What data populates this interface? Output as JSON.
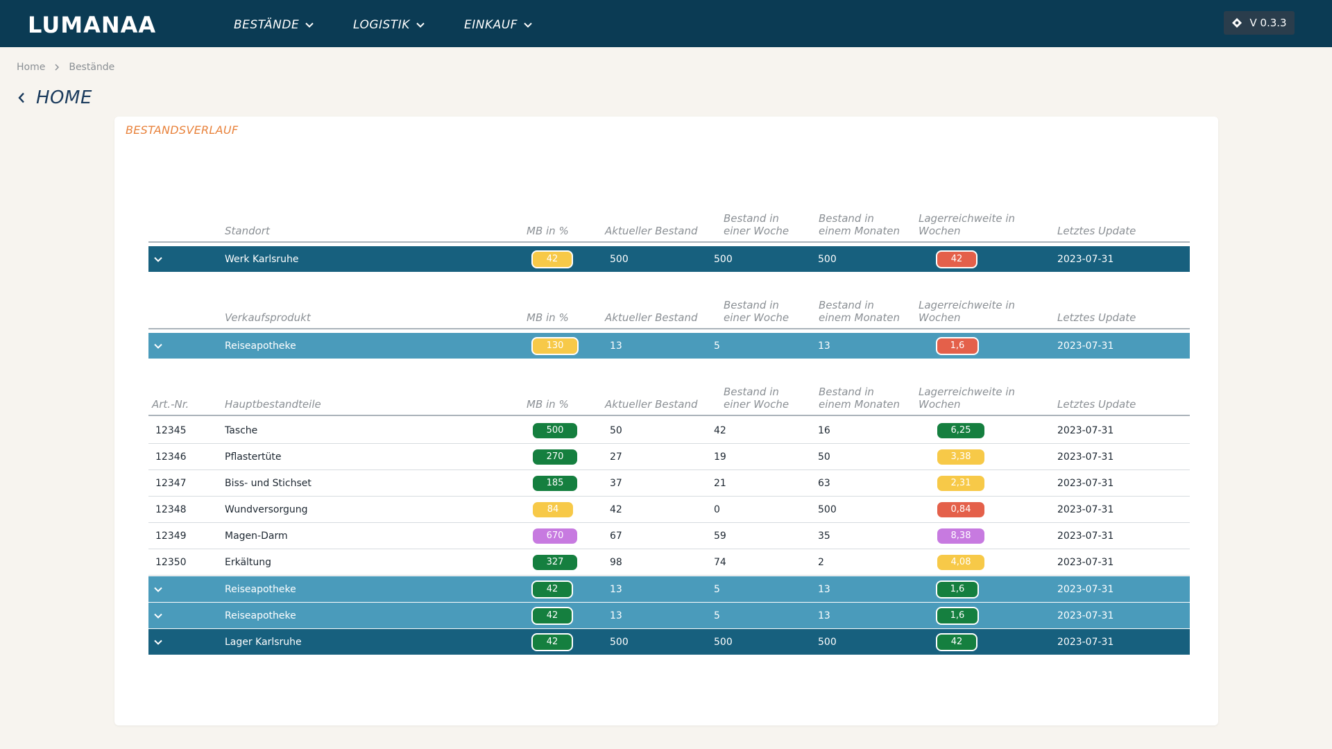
{
  "colors": {
    "nav_bg": "#0b3b54",
    "page_bg": "#f7f4ef",
    "accent_orange": "#e8813a",
    "row_dark": "#17607e",
    "row_mid": "#4a9bbb",
    "pill_yellow": "#f7c948",
    "pill_red": "#e4604a",
    "pill_green": "#157f3f",
    "pill_purple": "#c77ae0"
  },
  "nav": {
    "logo": "LUMANAA",
    "items": [
      {
        "label": "BESTÄNDE",
        "icon": "chevron-down-icon"
      },
      {
        "label": "LOGISTIK",
        "icon": "chevron-down-icon"
      },
      {
        "label": "EINKAUF",
        "icon": "chevron-down-icon"
      }
    ],
    "version": "V 0.3.3",
    "version_icon": "git-commit-icon"
  },
  "breadcrumb": [
    "Home",
    "Bestände"
  ],
  "page_title": "HOME",
  "card_title": "BESTANDSVERLAUF",
  "headers": {
    "art_nr": "Art.-Nr.",
    "standort": "Standort",
    "verkaufsprodukt": "Verkaufsprodukt",
    "hauptbestandteile": "Hauptbestandteile",
    "mb": "MB in %",
    "aktuell": "Aktueller Bestand",
    "woche_1": "Bestand in",
    "woche_2": "einer Woche",
    "monat_1": "Bestand in",
    "monat_2": "einem Monaten",
    "reichweite_1": "Lagerreichweite in",
    "reichweite_2": "Wochen",
    "update": "Letztes Update"
  },
  "werk_row": {
    "name": "Werk Karlsruhe",
    "mb": "42",
    "aktuell": "500",
    "woche": "500",
    "monat": "500",
    "reichweite": "42",
    "update": "2023-07-31"
  },
  "produkt_row": {
    "name": "Reiseapotheke",
    "mb": "130",
    "aktuell": "13",
    "woche": "5",
    "monat": "13",
    "reichweite": "1,6",
    "update": "2023-07-31"
  },
  "components": [
    {
      "art": "12345",
      "name": "Tasche",
      "mb": "500",
      "mb_color": "green",
      "aktuell": "50",
      "woche": "42",
      "monat": "16",
      "reichweite": "6,25",
      "rw_color": "green",
      "update": "2023-07-31"
    },
    {
      "art": "12346",
      "name": "Pflastertüte",
      "mb": "270",
      "mb_color": "green",
      "aktuell": "27",
      "woche": "19",
      "monat": "50",
      "reichweite": "3,38",
      "rw_color": "yellow",
      "update": "2023-07-31"
    },
    {
      "art": "12347",
      "name": "Biss- und Stichset",
      "mb": "185",
      "mb_color": "green",
      "aktuell": "37",
      "woche": "21",
      "monat": "63",
      "reichweite": "2,31",
      "rw_color": "yellow",
      "update": "2023-07-31"
    },
    {
      "art": "12348",
      "name": "Wundversorgung",
      "mb": "84",
      "mb_color": "yellow",
      "aktuell": "42",
      "woche": "0",
      "monat": "500",
      "reichweite": "0,84",
      "rw_color": "red",
      "update": "2023-07-31"
    },
    {
      "art": "12349",
      "name": "Magen-Darm",
      "mb": "670",
      "mb_color": "purple",
      "aktuell": "67",
      "woche": "59",
      "monat": "35",
      "reichweite": "8,38",
      "rw_color": "purple",
      "update": "2023-07-31"
    },
    {
      "art": "12350",
      "name": "Erkältung",
      "mb": "327",
      "mb_color": "green",
      "aktuell": "98",
      "woche": "74",
      "monat": "2",
      "reichweite": "4,08",
      "rw_color": "yellow",
      "update": "2023-07-31"
    }
  ],
  "collapsed_rows": [
    {
      "name": "Reiseapotheke",
      "mb": "42",
      "aktuell": "13",
      "woche": "5",
      "monat": "13",
      "reichweite": "1,6",
      "update": "2023-07-31"
    },
    {
      "name": "Reiseapotheke",
      "mb": "42",
      "aktuell": "13",
      "woche": "5",
      "monat": "13",
      "reichweite": "1,6",
      "update": "2023-07-31"
    }
  ],
  "lager_row": {
    "name": "Lager Karlsruhe",
    "mb": "42",
    "aktuell": "500",
    "woche": "500",
    "monat": "500",
    "reichweite": "42",
    "update": "2023-07-31"
  }
}
